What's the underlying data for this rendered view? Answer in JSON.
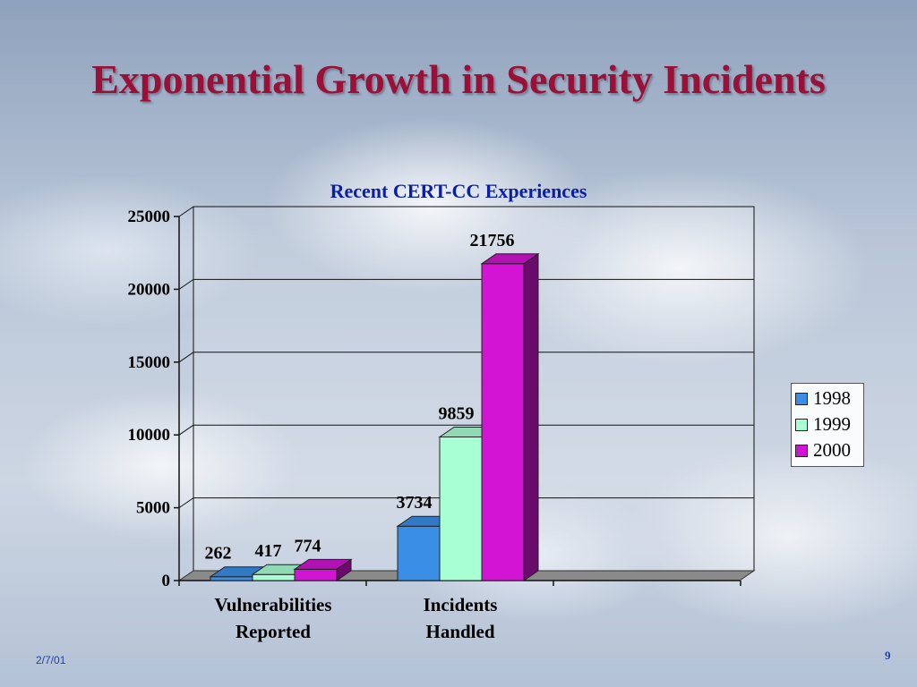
{
  "slide": {
    "title": "Exponential Growth in Security Incidents",
    "date": "2/7/01",
    "page_number": "9"
  },
  "chart_data": {
    "type": "bar",
    "title": "Recent CERT-CC Experiences",
    "categories": [
      [
        "Vulnerabilities",
        "Reported"
      ],
      [
        "Incidents",
        "Handled"
      ]
    ],
    "series": [
      {
        "name": "1998",
        "values": [
          262,
          3734
        ],
        "color": "#3a8ee6"
      },
      {
        "name": "1999",
        "values": [
          417,
          9859
        ],
        "color": "#a8ffd4"
      },
      {
        "name": "2000",
        "values": [
          774,
          21756
        ],
        "color": "#d414d4"
      }
    ],
    "ylim": [
      0,
      25000
    ],
    "yticks": [
      0,
      5000,
      10000,
      15000,
      20000,
      25000
    ],
    "grid": true,
    "legend_position": "right",
    "data_labels": true
  }
}
